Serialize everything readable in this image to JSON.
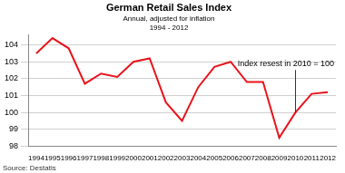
{
  "chart_data": {
    "type": "line",
    "title": "German Retail Sales Index",
    "subtitle": [
      "Annual, adjusted for inflation",
      "1994 - 2012"
    ],
    "categories": [
      "1994",
      "1995",
      "1996",
      "1997",
      "1998",
      "1999",
      "2000",
      "2001",
      "2002",
      "2003",
      "2004",
      "2005",
      "2006",
      "2007",
      "2008",
      "2009",
      "2010",
      "2011",
      "2012"
    ],
    "values": [
      103.5,
      104.4,
      103.8,
      101.7,
      102.3,
      102.1,
      103.0,
      103.2,
      100.6,
      99.5,
      101.5,
      102.7,
      103.0,
      101.8,
      101.8,
      98.5,
      100.0,
      101.1,
      101.2
    ],
    "color": "#e8141c",
    "ylim": [
      98,
      104.6
    ],
    "yticks": [
      98,
      99,
      100,
      101,
      102,
      103,
      104
    ],
    "grid": true,
    "annotations": [
      {
        "text": "Index resest in 2010 = 100",
        "category": "2010"
      }
    ],
    "source": "Source: Destatis"
  }
}
